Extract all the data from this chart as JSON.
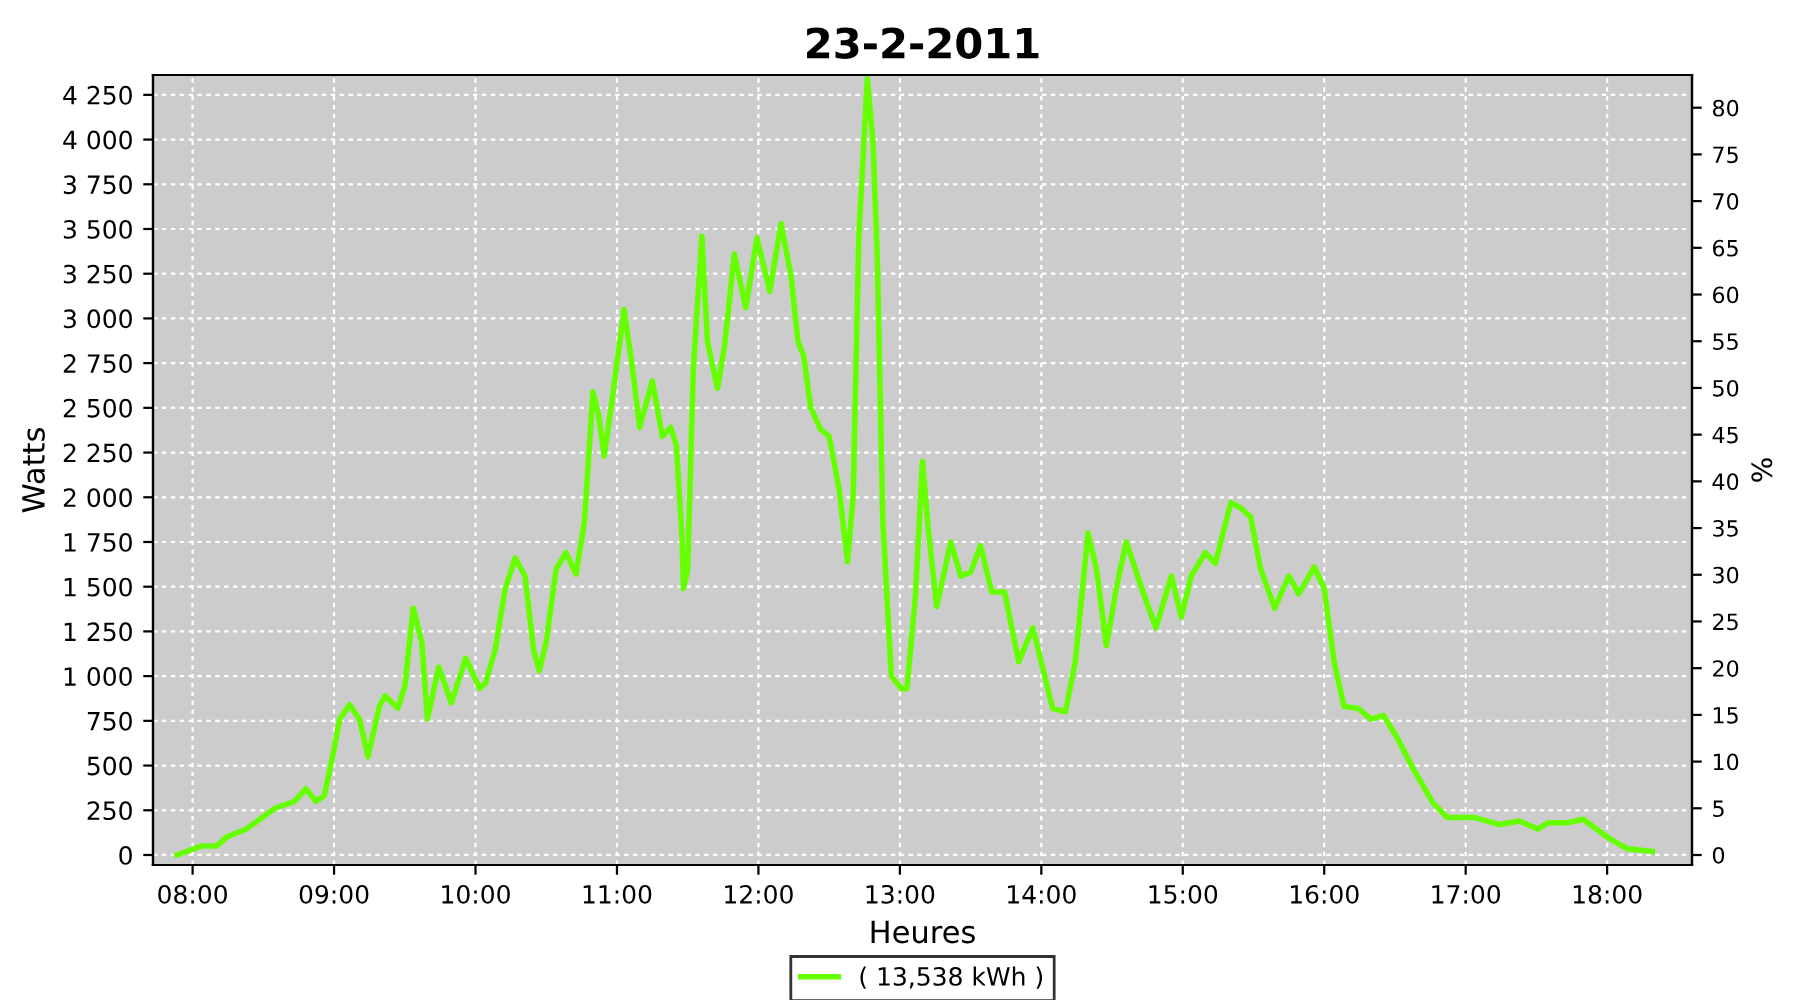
{
  "chart_data": {
    "type": "line",
    "title": "23-2-2011",
    "xlabel": "Heures",
    "ylabel": "Watts",
    "y2label": "%",
    "x": [
      7.89,
      8.06,
      8.17,
      8.24,
      8.38,
      8.58,
      8.72,
      8.8,
      8.87,
      8.93,
      9.0,
      9.04,
      9.11,
      9.18,
      9.24,
      9.32,
      9.36,
      9.45,
      9.5,
      9.56,
      9.62,
      9.66,
      9.74,
      9.83,
      9.93,
      10.03,
      10.07,
      10.14,
      10.21,
      10.28,
      10.35,
      10.41,
      10.45,
      10.5,
      10.57,
      10.64,
      10.71,
      10.77,
      10.83,
      10.87,
      10.91,
      10.97,
      11.05,
      11.11,
      11.16,
      11.25,
      11.29,
      11.32,
      11.38,
      11.42,
      11.46,
      11.47,
      11.5,
      11.54,
      11.6,
      11.64,
      11.71,
      11.76,
      11.83,
      11.91,
      11.99,
      12.08,
      12.16,
      12.23,
      12.28,
      12.32,
      12.37,
      12.44,
      12.5,
      12.57,
      12.63,
      12.67,
      12.71,
      12.77,
      12.81,
      12.84,
      12.88,
      12.94,
      13.01,
      13.05,
      13.11,
      13.16,
      13.2,
      13.26,
      13.36,
      13.43,
      13.5,
      13.57,
      13.65,
      13.74,
      13.84,
      13.94,
      14.08,
      14.17,
      14.24,
      14.33,
      14.39,
      14.46,
      14.53,
      14.6,
      14.71,
      14.81,
      14.92,
      14.99,
      15.06,
      15.16,
      15.23,
      15.34,
      15.41,
      15.48,
      15.55,
      15.65,
      15.75,
      15.82,
      15.93,
      16.0,
      16.07,
      16.14,
      16.24,
      16.33,
      16.42,
      16.52,
      16.63,
      16.77,
      16.87,
      17.06,
      17.24,
      17.38,
      17.51,
      17.58,
      17.72,
      17.83,
      18.0,
      18.14,
      18.32
    ],
    "series": [
      {
        "name": "( 13,538 kWh )",
        "color": "#66ff00",
        "values": [
          0,
          50,
          50,
          100,
          145,
          260,
          300,
          370,
          300,
          330,
          590,
          760,
          840,
          760,
          550,
          830,
          890,
          820,
          940,
          1380,
          1190,
          760,
          1050,
          850,
          1100,
          930,
          960,
          1150,
          1490,
          1660,
          1560,
          1150,
          1030,
          1190,
          1600,
          1690,
          1570,
          1860,
          2590,
          2460,
          2230,
          2570,
          3050,
          2720,
          2390,
          2650,
          2480,
          2340,
          2390,
          2290,
          1780,
          1490,
          1600,
          2720,
          3460,
          2870,
          2610,
          2840,
          3360,
          3060,
          3450,
          3150,
          3530,
          3240,
          2870,
          2790,
          2500,
          2380,
          2340,
          2050,
          1640,
          2010,
          3460,
          4340,
          3990,
          3350,
          1860,
          1000,
          930,
          930,
          1450,
          2200,
          1830,
          1390,
          1750,
          1560,
          1580,
          1730,
          1470,
          1470,
          1080,
          1270,
          820,
          800,
          1080,
          1800,
          1600,
          1170,
          1490,
          1750,
          1490,
          1270,
          1560,
          1330,
          1560,
          1690,
          1630,
          1970,
          1940,
          1890,
          1600,
          1380,
          1560,
          1460,
          1610,
          1490,
          1080,
          830,
          820,
          760,
          780,
          650,
          480,
          290,
          210,
          210,
          170,
          190,
          145,
          180,
          180,
          200,
          100,
          35,
          20
        ]
      }
    ],
    "xlim": [
      7.72,
      18.6
    ],
    "xticks": [
      {
        "value": 8,
        "label": "08:00"
      },
      {
        "value": 9,
        "label": "09:00"
      },
      {
        "value": 10,
        "label": "10:00"
      },
      {
        "value": 11,
        "label": "11:00"
      },
      {
        "value": 12,
        "label": "12:00"
      },
      {
        "value": 13,
        "label": "13:00"
      },
      {
        "value": 14,
        "label": "14:00"
      },
      {
        "value": 15,
        "label": "15:00"
      },
      {
        "value": 16,
        "label": "16:00"
      },
      {
        "value": 17,
        "label": "17:00"
      },
      {
        "value": 18,
        "label": "18:00"
      }
    ],
    "ylim": [
      -56,
      4361
    ],
    "yticks": [
      0,
      250,
      500,
      750,
      {
        "value": 1000,
        "label": "1 000"
      },
      {
        "value": 1250,
        "label": "1 250"
      },
      {
        "value": 1500,
        "label": "1 500"
      },
      {
        "value": 1750,
        "label": "1 750"
      },
      {
        "value": 2000,
        "label": "2 000"
      },
      {
        "value": 2250,
        "label": "2 250"
      },
      {
        "value": 2500,
        "label": "2 500"
      },
      {
        "value": 2750,
        "label": "2 750"
      },
      {
        "value": 3000,
        "label": "3 000"
      },
      {
        "value": 3250,
        "label": "3 250"
      },
      {
        "value": 3500,
        "label": "3 500"
      },
      {
        "value": 3750,
        "label": "3 750"
      },
      {
        "value": 4000,
        "label": "4 000"
      },
      {
        "value": 4250,
        "label": "4 250"
      }
    ],
    "y2lim": [
      -1.07,
      83.5
    ],
    "y2ticks": [
      0,
      5,
      10,
      15,
      20,
      25,
      30,
      35,
      40,
      45,
      50,
      55,
      60,
      65,
      70,
      75,
      80
    ],
    "grid": true,
    "legend": "bottom",
    "marker": "none",
    "line_style": "solid"
  }
}
